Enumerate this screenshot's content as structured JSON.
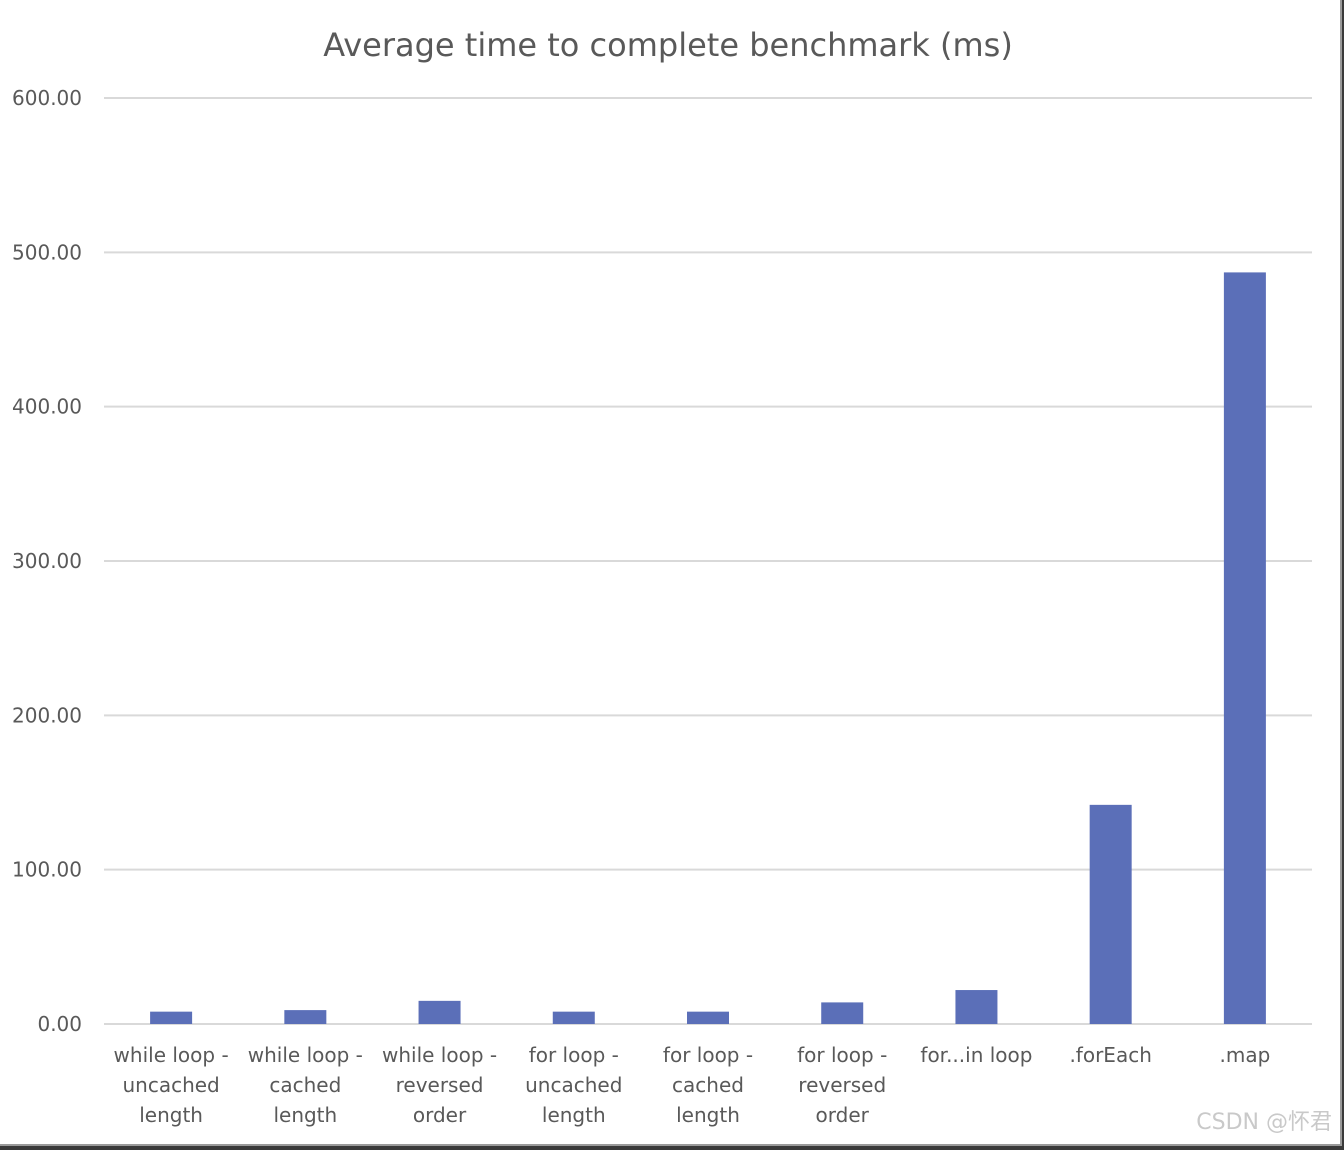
{
  "chart_data": {
    "type": "bar",
    "title": "Average time to complete benchmark (ms)",
    "xlabel": "",
    "ylabel": "",
    "ylim": [
      0,
      600
    ],
    "y_ticks": [
      "0.00",
      "100.00",
      "200.00",
      "300.00",
      "400.00",
      "500.00",
      "600.00"
    ],
    "categories": [
      [
        "while loop -",
        "uncached",
        "length"
      ],
      [
        "while loop -",
        "cached",
        "length"
      ],
      [
        "while loop -",
        "reversed",
        "order"
      ],
      [
        "for loop -",
        "uncached",
        "length"
      ],
      [
        "for loop -",
        "cached",
        "length"
      ],
      [
        "for loop -",
        "reversed",
        "order"
      ],
      [
        "for...in loop"
      ],
      [
        ".forEach"
      ],
      [
        ".map"
      ]
    ],
    "values": [
      8,
      9,
      15,
      8,
      8,
      14,
      22,
      142,
      487
    ],
    "grid": true,
    "legend": "none",
    "bar_color": "#5b6fb8",
    "grid_color": "#d9d9d9"
  },
  "watermark": "CSDN @怀君"
}
